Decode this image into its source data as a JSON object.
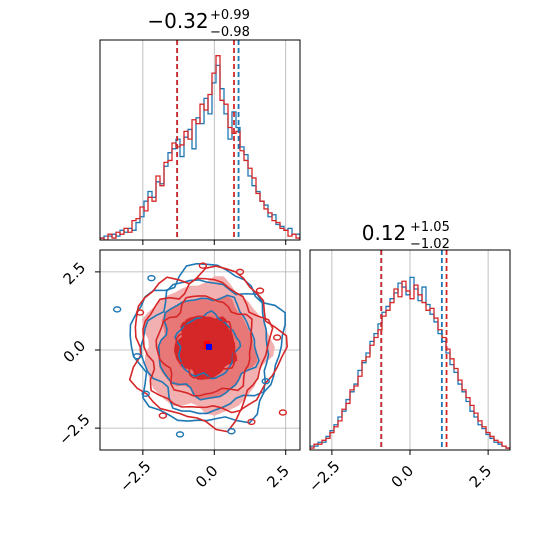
{
  "colors": {
    "series_a": "#1f77b4",
    "series_b": "#d62728",
    "grid": "#b0b0b0",
    "axis": "#000000",
    "hist2d_peak": "#0000ff"
  },
  "chart_data": [
    {
      "type": "histogram",
      "panel": "top-left",
      "title": {
        "main": "−0.32",
        "sup": "+0.99",
        "sub": "−0.98"
      },
      "xlim": [
        -4,
        3
      ],
      "ylim": [
        0,
        1
      ],
      "grid": true,
      "bin_edges_start": -4,
      "bin_width": 0.14,
      "series": [
        {
          "color": "#1f77b4",
          "quantiles": [
            -1.3,
            -0.32,
            0.85
          ],
          "counts": [
            0.01,
            0.02,
            0.02,
            0.03,
            0.02,
            0.05,
            0.04,
            0.06,
            0.05,
            0.09,
            0.12,
            0.2,
            0.25,
            0.22,
            0.3,
            0.29,
            0.38,
            0.45,
            0.47,
            0.52,
            0.43,
            0.53,
            0.57,
            0.47,
            0.63,
            0.6,
            0.73,
            0.65,
            0.81,
            0.9,
            0.78,
            0.65,
            0.52,
            0.66,
            0.58,
            0.48,
            0.44,
            0.33,
            0.28,
            0.25,
            0.2,
            0.18,
            0.12,
            0.13,
            0.08,
            0.07,
            0.05,
            0.06,
            0.03,
            0.03
          ]
        },
        {
          "color": "#d62728",
          "quantiles": [
            -1.3,
            -0.32,
            0.69
          ],
          "counts": [
            0.01,
            0.0,
            0.03,
            0.01,
            0.04,
            0.03,
            0.06,
            0.04,
            0.1,
            0.11,
            0.17,
            0.15,
            0.22,
            0.2,
            0.33,
            0.28,
            0.4,
            0.41,
            0.5,
            0.48,
            0.49,
            0.56,
            0.52,
            0.62,
            0.6,
            0.7,
            0.67,
            0.75,
            0.86,
            0.95,
            0.72,
            0.7,
            0.58,
            0.55,
            0.56,
            0.46,
            0.41,
            0.37,
            0.32,
            0.24,
            0.2,
            0.16,
            0.14,
            0.1,
            0.09,
            0.06,
            0.05,
            0.02,
            0.03,
            0.01
          ]
        }
      ]
    },
    {
      "type": "histogram",
      "panel": "bottom-right",
      "title": {
        "main": "0.12",
        "sup": "+1.05",
        "sub": "−1.02"
      },
      "xlim": [
        -3.2,
        3.2
      ],
      "ylim": [
        0,
        1
      ],
      "grid": true,
      "xticks": [
        -2.5,
        0.0,
        2.5
      ],
      "xtick_labels": [
        "−2.5",
        "0.0",
        "2.5"
      ],
      "bin_edges_start": -3.2,
      "bin_width": 0.128,
      "series": [
        {
          "color": "#1f77b4",
          "quantiles": [
            -0.92,
            0.12,
            1.02
          ],
          "counts": [
            0.02,
            0.02,
            0.04,
            0.04,
            0.07,
            0.1,
            0.13,
            0.17,
            0.2,
            0.26,
            0.3,
            0.34,
            0.41,
            0.45,
            0.5,
            0.56,
            0.6,
            0.65,
            0.71,
            0.74,
            0.78,
            0.81,
            0.86,
            0.84,
            0.8,
            0.89,
            0.83,
            0.77,
            0.84,
            0.75,
            0.7,
            0.66,
            0.6,
            0.56,
            0.5,
            0.44,
            0.4,
            0.34,
            0.3,
            0.25,
            0.2,
            0.17,
            0.13,
            0.11,
            0.08,
            0.06,
            0.04,
            0.03,
            0.02,
            0.01
          ]
        },
        {
          "color": "#d62728",
          "quantiles": [
            -0.92,
            0.12,
            1.17
          ],
          "counts": [
            0.01,
            0.03,
            0.03,
            0.05,
            0.06,
            0.09,
            0.12,
            0.15,
            0.21,
            0.24,
            0.31,
            0.33,
            0.38,
            0.46,
            0.48,
            0.54,
            0.58,
            0.62,
            0.69,
            0.72,
            0.76,
            0.83,
            0.79,
            0.87,
            0.82,
            0.78,
            0.85,
            0.8,
            0.76,
            0.72,
            0.73,
            0.68,
            0.62,
            0.58,
            0.52,
            0.47,
            0.42,
            0.36,
            0.31,
            0.27,
            0.23,
            0.19,
            0.15,
            0.12,
            0.09,
            0.07,
            0.05,
            0.04,
            0.02,
            0.01
          ]
        }
      ]
    },
    {
      "type": "contour",
      "panel": "bottom-left",
      "xlim": [
        -4,
        3
      ],
      "ylim": [
        -3.2,
        3.2
      ],
      "grid": true,
      "xticks": [
        -2.5,
        0.0,
        2.5
      ],
      "xtick_labels": [
        "−2.5",
        "0.0",
        "2.5"
      ],
      "yticks": [
        -2.5,
        0.0,
        2.5
      ],
      "ytick_labels": [
        "−2.5",
        "0.0",
        "2.5"
      ],
      "centers": {
        "series_a": [
          -0.25,
          0.12
        ],
        "series_b": [
          -0.3,
          0.1
        ]
      },
      "levels_sigma": [
        1.0,
        1.6,
        2.1,
        2.5
      ]
    }
  ]
}
